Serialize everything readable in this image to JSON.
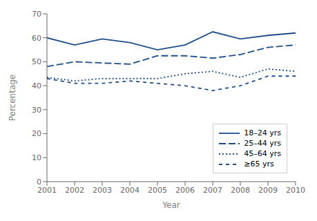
{
  "chart_data": {
    "type": "line",
    "xlabel": "Year",
    "ylabel": "Percentage",
    "x": [
      2001,
      2002,
      2003,
      2004,
      2005,
      2006,
      2007,
      2008,
      2009,
      2010
    ],
    "xlim": [
      2001,
      2010
    ],
    "xticks": [
      2001,
      2002,
      2003,
      2004,
      2005,
      2006,
      2007,
      2008,
      2009,
      2010
    ],
    "ylim": [
      0,
      70
    ],
    "yticks": [
      0,
      10,
      20,
      30,
      40,
      50,
      60,
      70
    ],
    "color": "#1f4e8c",
    "grid": false,
    "legend": "lower right",
    "series": [
      {
        "name": "18–24 yrs",
        "line_style": "solid",
        "values": [
          60,
          57,
          59.5,
          58,
          55,
          57,
          62.5,
          59.5,
          61,
          62
        ]
      },
      {
        "name": "25–44 yrs",
        "line_style": "longdash",
        "values": [
          48,
          50,
          49.5,
          49,
          52.5,
          52.5,
          51.5,
          53,
          56,
          57
        ]
      },
      {
        "name": "45–64 yrs",
        "line_style": "dotted",
        "values": [
          43.5,
          42,
          43,
          43,
          43,
          45,
          46,
          43.5,
          47,
          46
        ]
      },
      {
        "name": "≥65 yrs",
        "line_style": "dashed",
        "values": [
          43,
          41,
          41,
          42,
          41,
          40,
          38,
          40,
          44,
          44
        ]
      }
    ]
  }
}
